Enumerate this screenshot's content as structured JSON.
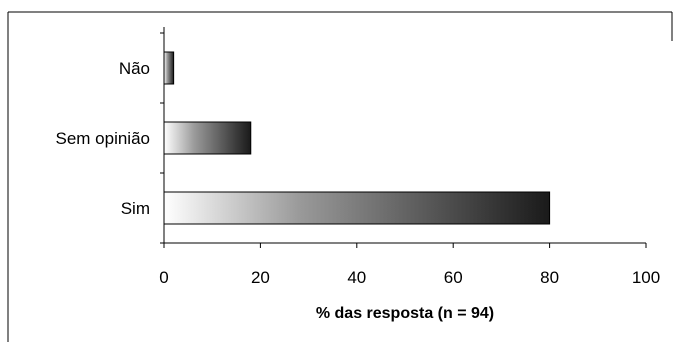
{
  "chart_data": {
    "type": "bar",
    "orientation": "horizontal",
    "categories": [
      "Não",
      "Sem opinião",
      "Sim"
    ],
    "values": [
      2,
      18,
      80
    ],
    "title": "",
    "xlabel": "% das resposta (n = 94)",
    "ylabel": "",
    "xlim": [
      0,
      100
    ],
    "xticks": [
      0,
      20,
      40,
      60,
      80,
      100
    ],
    "xtick_labels": [
      "0",
      "20",
      "40",
      "60",
      "80",
      "100"
    ],
    "grid": false,
    "legend": "none",
    "bar_fill": "horizontal gradient white to black",
    "colors": {
      "gradient_start": "#ffffff",
      "gradient_end": "#1a1a1a",
      "outline": "#000000"
    }
  }
}
